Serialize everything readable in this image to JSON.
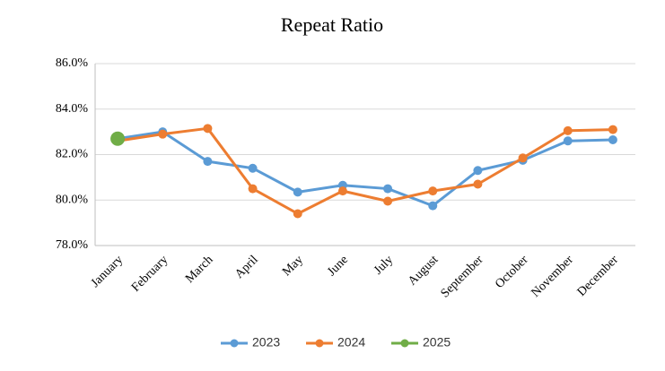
{
  "chart_data": {
    "type": "line",
    "title": "Repeat Ratio",
    "categories": [
      "January",
      "February",
      "March",
      "April",
      "May",
      "June",
      "July",
      "August",
      "September",
      "October",
      "November",
      "December"
    ],
    "series": [
      {
        "name": "2023",
        "color": "#5b9bd5",
        "values": [
          82.7,
          83.0,
          81.7,
          81.4,
          80.35,
          80.65,
          80.5,
          79.75,
          81.3,
          81.75,
          82.6,
          82.65
        ]
      },
      {
        "name": "2024",
        "color": "#ed7d31",
        "values": [
          82.6,
          82.9,
          83.15,
          80.5,
          79.4,
          80.4,
          79.95,
          80.4,
          80.7,
          81.85,
          83.05,
          83.1
        ]
      },
      {
        "name": "2025",
        "color": "#70ad47",
        "values": [
          82.7,
          null,
          null,
          null,
          null,
          null,
          null,
          null,
          null,
          null,
          null,
          null
        ]
      }
    ],
    "ylim": [
      78,
      86
    ],
    "yticks": [
      {
        "value": 78,
        "label": "78.0%"
      },
      {
        "value": 80,
        "label": "80.0%"
      },
      {
        "value": 82,
        "label": "82.0%"
      },
      {
        "value": 84,
        "label": "84.0%"
      },
      {
        "value": 86,
        "label": "86.0%"
      }
    ],
    "grid": true,
    "legend": "bottom"
  }
}
